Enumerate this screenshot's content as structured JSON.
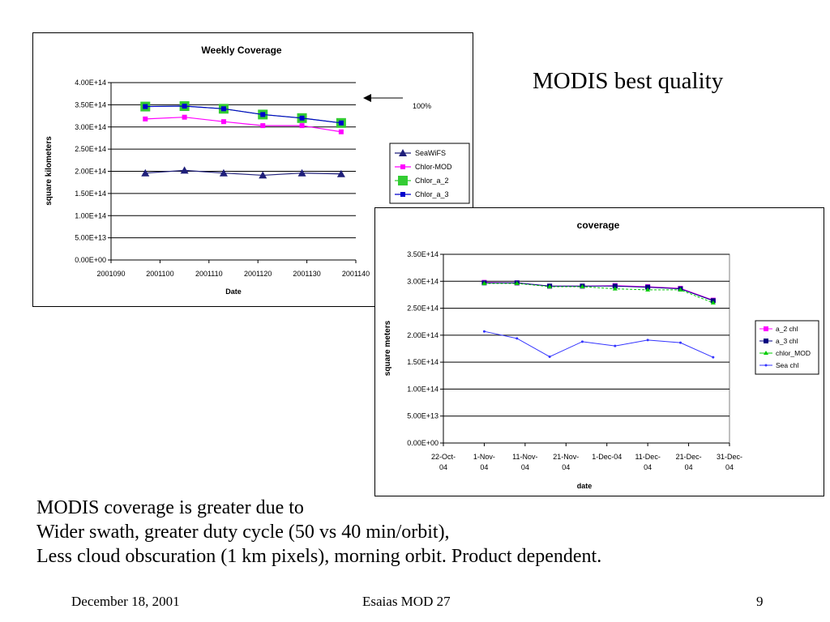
{
  "slide": {
    "side_title": "MODIS best quality",
    "body_lines": [
      "MODIS coverage is greater due to",
      "Wider swath, greater duty cycle (50 vs 40 min/orbit),",
      "Less cloud obscuration (1 km pixels), morning orbit.  Product dependent."
    ],
    "footer": {
      "date": "December 18, 2001",
      "center": "Esaias  MOD 27",
      "page": "9"
    }
  },
  "chart_data": [
    {
      "type": "line",
      "title": "Weekly Coverage",
      "xlabel": "Date",
      "ylabel": "square kilometers",
      "x_ticks": [
        "2001090",
        "2001100",
        "2001110",
        "2001120",
        "2001130",
        "2001140"
      ],
      "xlim": [
        2001090,
        2001140
      ],
      "y_ticks": [
        "0.00E+00",
        "5.00E+13",
        "1.00E+14",
        "1.50E+14",
        "2.00E+14",
        "2.50E+14",
        "3.00E+14",
        "3.50E+14",
        "4.00E+14"
      ],
      "ylim": [
        0,
        400000000000000.0
      ],
      "grid": "horizontal",
      "legend_position": "right",
      "annotation": {
        "text": "100%",
        "arrow_at_y": 350000000000000.0
      },
      "x": [
        2001097,
        2001105,
        2001113,
        2001121,
        2001129,
        2001137
      ],
      "series": [
        {
          "name": "SeaWiFS",
          "color": "#1f1f7a",
          "marker": "triangle",
          "values": [
            196000000000000.0,
            202000000000000.0,
            196000000000000.0,
            191000000000000.0,
            196000000000000.0,
            194000000000000.0
          ]
        },
        {
          "name": "Chlor-MOD",
          "color": "#ff00ff",
          "marker": "square",
          "values": [
            318000000000000.0,
            322000000000000.0,
            312000000000000.0,
            303000000000000.0,
            303000000000000.0,
            289000000000000.0
          ]
        },
        {
          "name": "Chlor_a_2",
          "color": "#33cc33",
          "marker": "square-large",
          "values": [
            346000000000000.0,
            347000000000000.0,
            341000000000000.0,
            328000000000000.0,
            320000000000000.0,
            309000000000000.0
          ]
        },
        {
          "name": "Chlor_a_3",
          "color": "#0000cc",
          "marker": "square",
          "values": [
            346000000000000.0,
            347000000000000.0,
            341000000000000.0,
            328000000000000.0,
            320000000000000.0,
            309000000000000.0
          ]
        }
      ]
    },
    {
      "type": "line",
      "title": "coverage",
      "xlabel": "date",
      "ylabel": "square meters",
      "x_ticks": [
        [
          "22-Oct-",
          "04"
        ],
        [
          "1-Nov-",
          "04"
        ],
        [
          "11-Nov-",
          "04"
        ],
        [
          "21-Nov-",
          "04"
        ],
        [
          "1-Dec-04"
        ],
        [
          "11-Dec-",
          "04"
        ],
        [
          "21-Dec-",
          "04"
        ],
        [
          "31-Dec-",
          "04"
        ]
      ],
      "xlim": [
        0,
        70
      ],
      "y_ticks": [
        "0.00E+00",
        "5.00E+13",
        "1.00E+14",
        "1.50E+14",
        "2.00E+14",
        "2.50E+14",
        "3.00E+14",
        "3.50E+14"
      ],
      "ylim": [
        0,
        350000000000000.0
      ],
      "grid": "horizontal",
      "legend_position": "right",
      "x": [
        10,
        18,
        26,
        34,
        42,
        50,
        58,
        66
      ],
      "series": [
        {
          "name": "a_2 chl",
          "color": "#ff00ff",
          "marker": "square",
          "values": [
            298000000000000.0,
            297000000000000.0,
            291000000000000.0,
            291000000000000.0,
            292000000000000.0,
            290000000000000.0,
            287000000000000.0,
            265000000000000.0
          ]
        },
        {
          "name": "a_3 chl",
          "color": "#000080",
          "marker": "square",
          "values": [
            297000000000000.0,
            297000000000000.0,
            291000000000000.0,
            291000000000000.0,
            291000000000000.0,
            289000000000000.0,
            286000000000000.0,
            264000000000000.0
          ]
        },
        {
          "name": "chlor_MOD",
          "color": "#00cc00",
          "marker": "triangle",
          "values": [
            296000000000000.0,
            296000000000000.0,
            290000000000000.0,
            290000000000000.0,
            286000000000000.0,
            284000000000000.0,
            284000000000000.0,
            260000000000000.0
          ]
        },
        {
          "name": "Sea chl",
          "color": "#3333ff",
          "marker": "dot",
          "values": [
            207000000000000.0,
            194000000000000.0,
            160000000000000.0,
            188000000000000.0,
            180000000000000.0,
            191000000000000.0,
            186000000000000.0,
            159000000000000.0
          ]
        }
      ]
    }
  ]
}
